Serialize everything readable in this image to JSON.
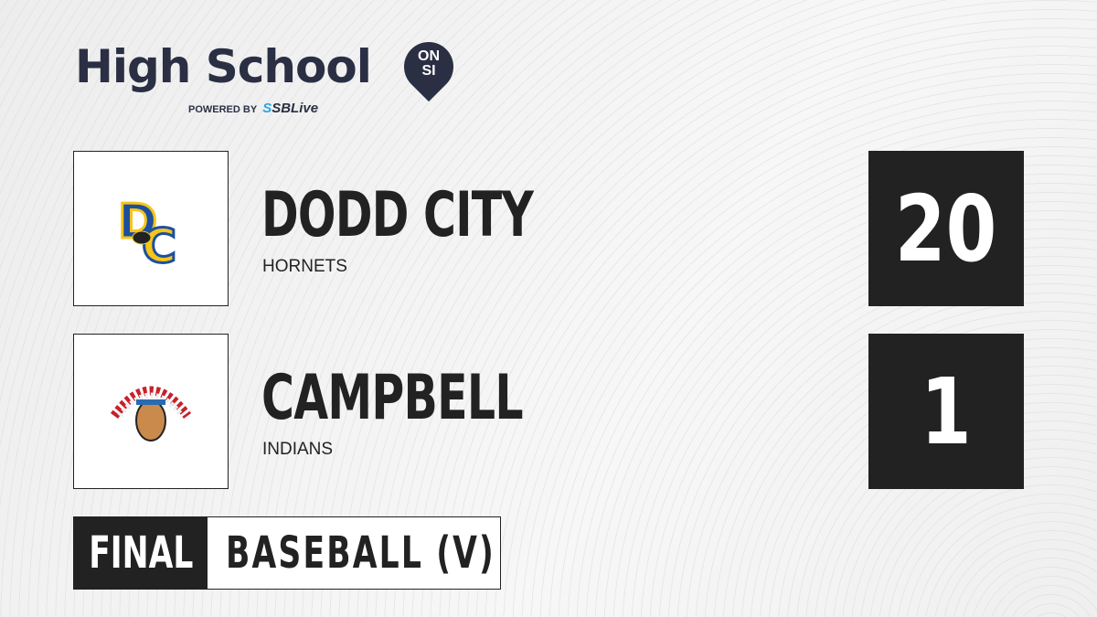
{
  "brand": {
    "title": "High School",
    "badge_line1": "ON",
    "badge_line2": "SI",
    "powered_by": "POWERED BY",
    "partner_s": "S",
    "partner": "SBLive"
  },
  "teams": [
    {
      "name": "DODD CITY",
      "mascot": "HORNETS",
      "score": "20",
      "logo_letters": "DC",
      "colors": [
        "#1c4fa0",
        "#f5c518"
      ]
    },
    {
      "name": "CAMPBELL",
      "mascot": "INDIANS",
      "score": "1"
    }
  ],
  "game": {
    "status": "FINAL",
    "sport": "BASEBALL (V)"
  }
}
